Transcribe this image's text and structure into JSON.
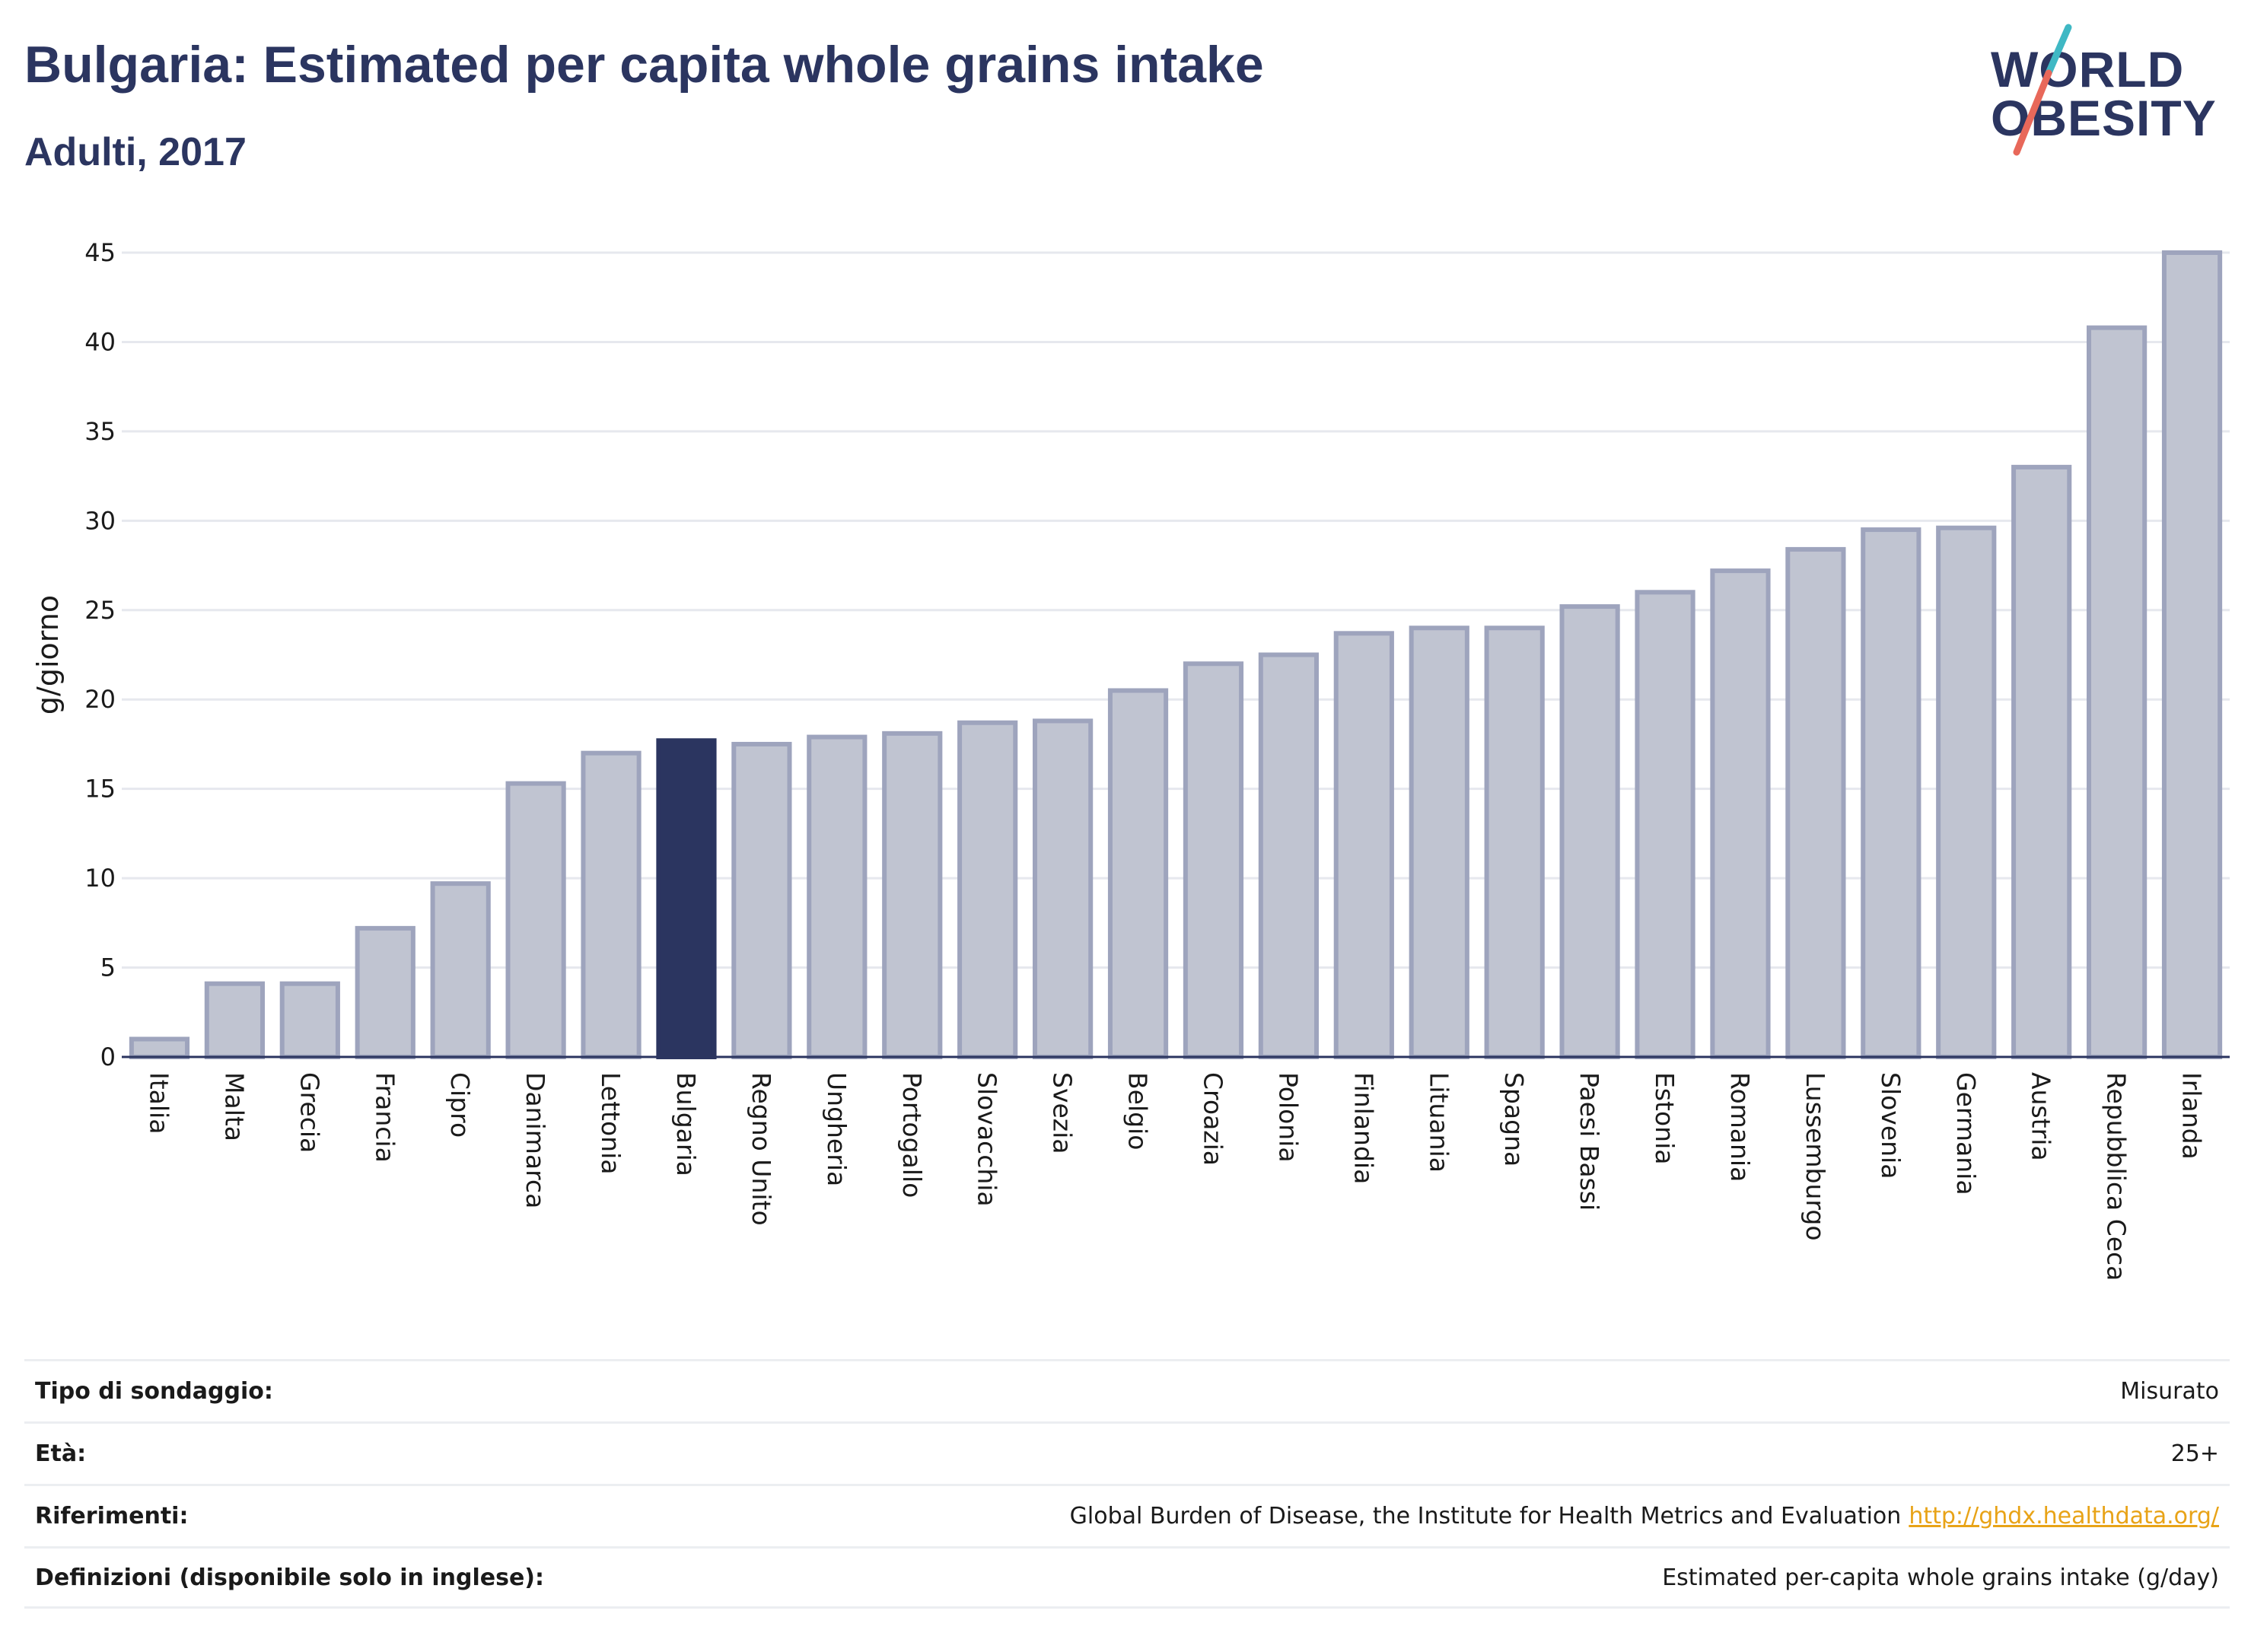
{
  "header": {
    "title": "Bulgaria: Estimated per capita whole grains intake",
    "subtitle": "Adulti, 2017"
  },
  "logo": {
    "line1": "WORLD",
    "line2": "OBESITY",
    "colors": {
      "text": "#2b3560",
      "slash_top": "#3fb8c4",
      "slash_bottom": "#e8685a"
    }
  },
  "chart_data": {
    "type": "bar",
    "ylabel": "g/giorno",
    "xlabel": "",
    "ylim": [
      0,
      45
    ],
    "yticks": [
      0,
      5,
      10,
      15,
      20,
      25,
      30,
      35,
      40,
      45
    ],
    "grid": true,
    "highlight": "Bulgaria",
    "colors": {
      "bar": "#c0c4d1",
      "bar_border": "#9ea4bd",
      "highlight": "#2b3560",
      "grid": "#e6e8ee",
      "axis": "#2b3560"
    },
    "categories": [
      "Italia",
      "Malta",
      "Grecia",
      "Francia",
      "Cipro",
      "Danimarca",
      "Lettonia",
      "Bulgaria",
      "Regno Unito",
      "Ungheria",
      "Portogallo",
      "Slovacchia",
      "Svezia",
      "Belgio",
      "Croazia",
      "Polonia",
      "Finlandia",
      "Lituania",
      "Spagna",
      "Paesi Bassi",
      "Estonia",
      "Romania",
      "Lussemburgo",
      "Slovenia",
      "Germania",
      "Austria",
      "Repubblica Ceca",
      "Irlanda"
    ],
    "values": [
      1.0,
      4.1,
      4.1,
      7.2,
      9.7,
      15.3,
      17.0,
      17.7,
      17.5,
      17.9,
      18.1,
      18.7,
      18.8,
      20.5,
      22.0,
      22.5,
      23.7,
      24.0,
      24.0,
      25.2,
      26.0,
      27.2,
      28.4,
      29.5,
      29.6,
      33.0,
      40.8,
      45.0
    ]
  },
  "info": [
    {
      "label": "Tipo di sondaggio:",
      "value": "Misurato"
    },
    {
      "label": "Età:",
      "value": "25+"
    },
    {
      "label": "Riferimenti:",
      "value": "Global Burden of Disease, the Institute for Health Metrics and Evaluation",
      "link": "http://ghdx.healthdata.org/"
    },
    {
      "label": "Definizioni (disponibile solo in inglese):",
      "value": "Estimated per-capita whole grains intake (g/day)"
    }
  ]
}
